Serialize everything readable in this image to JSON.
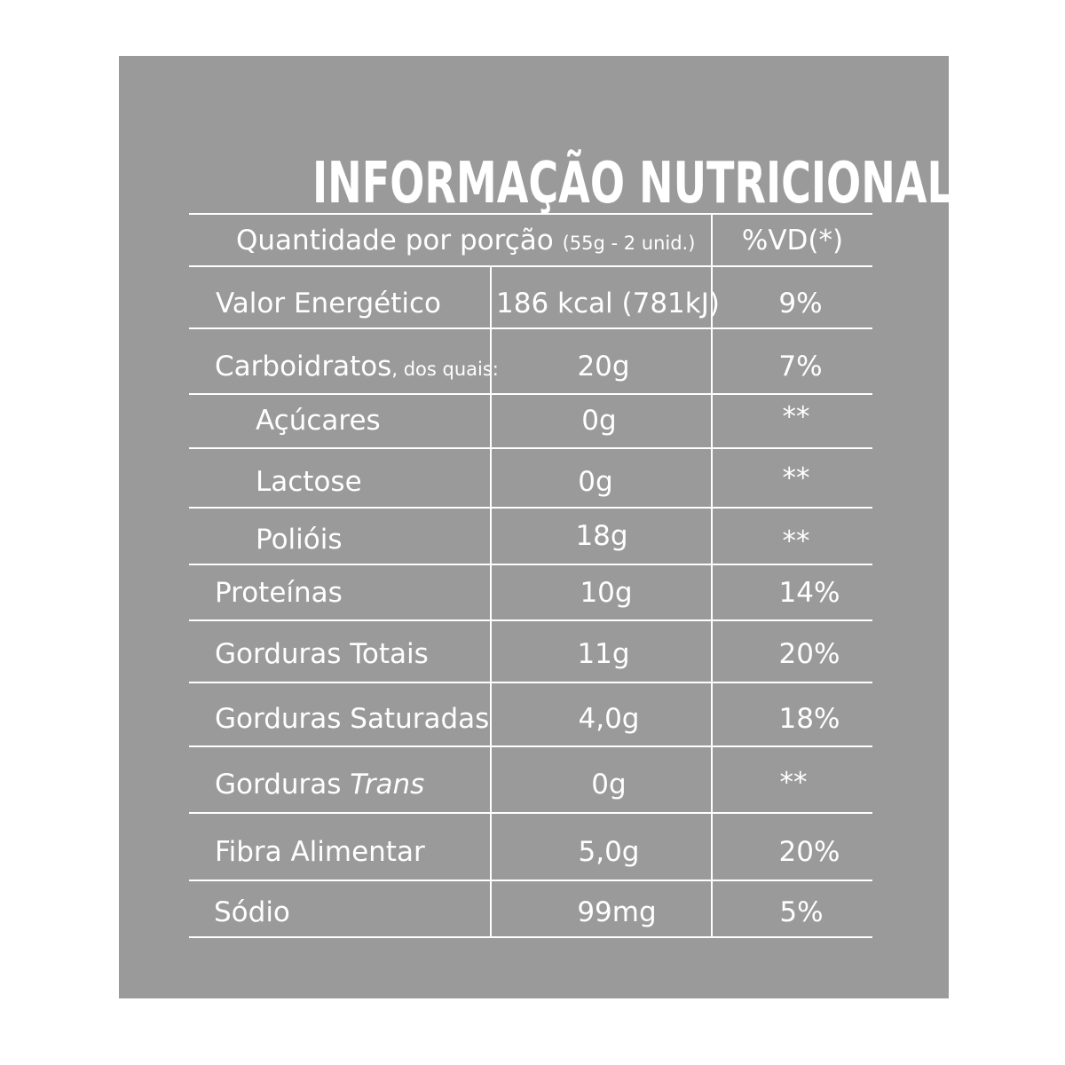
{
  "title": "INFORMAÇÃO NUTRICIONAL",
  "header": {
    "serving_label": "Quantidade por porção",
    "serving_size": "(55g - 2 unid.)",
    "dv_label": "%VD(*)"
  },
  "rows": [
    {
      "name": "Valor Energético",
      "amount": "186 kcal (781kJ)",
      "dv": "9%"
    },
    {
      "name": "Carboidratos",
      "name_suffix": ", dos quais:",
      "amount": "20g",
      "dv": "7%"
    },
    {
      "name": "Açúcares",
      "amount": "0g",
      "dv": "**"
    },
    {
      "name": "Lactose",
      "amount": "0g",
      "dv": "**"
    },
    {
      "name": "Polióis",
      "amount": "18g",
      "dv": "**"
    },
    {
      "name": "Proteínas",
      "amount": "10g",
      "dv": "14%"
    },
    {
      "name": "Gorduras Totais",
      "amount": "11g",
      "dv": "20%"
    },
    {
      "name": "Gorduras Saturadas",
      "amount": "4,0g",
      "dv": "18%"
    },
    {
      "name": "Gorduras",
      "name_italic": "Trans",
      "amount": "0g",
      "dv": "**"
    },
    {
      "name": "Fibra Alimentar",
      "amount": "5,0g",
      "dv": "20%"
    },
    {
      "name": "Sódio",
      "amount": "99mg",
      "dv": "5%"
    }
  ]
}
